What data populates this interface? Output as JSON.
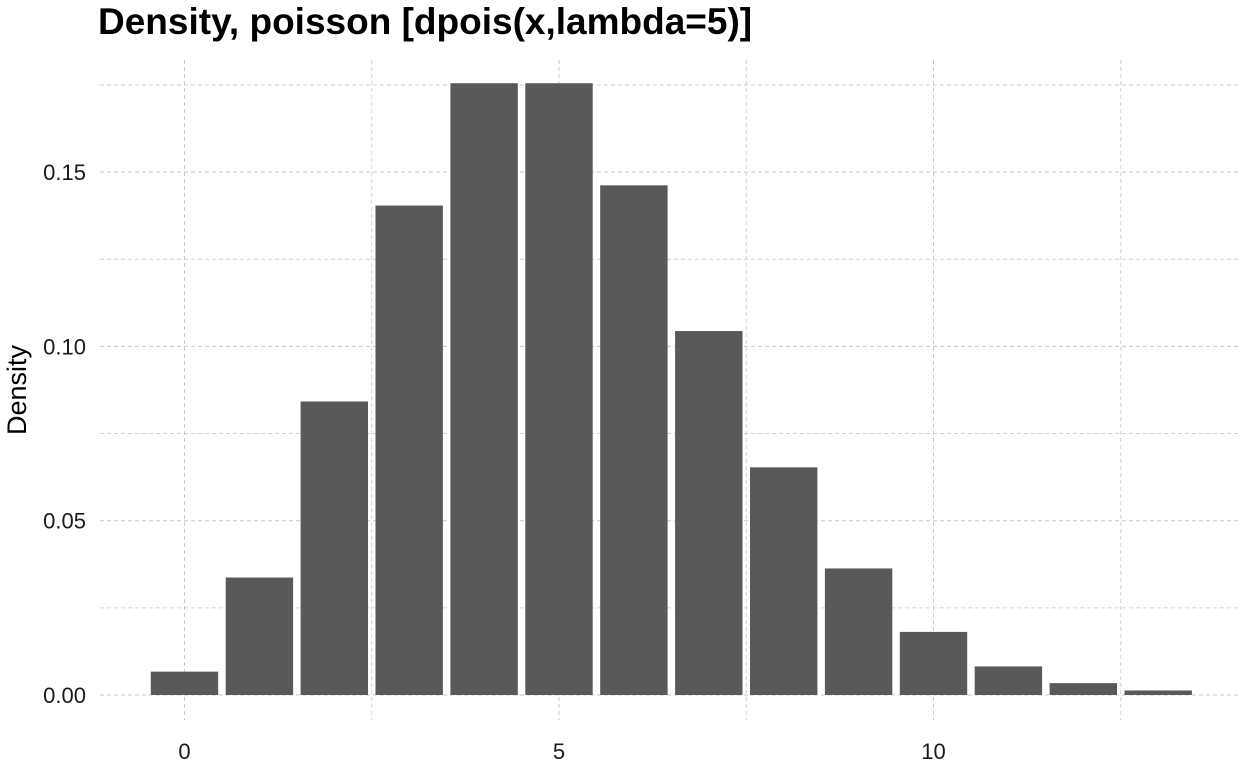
{
  "chart_data": {
    "type": "bar",
    "title": "Density, poisson [dpois(x,lambda=5)]",
    "xlabel": "",
    "ylabel": "Density",
    "x": [
      0,
      1,
      2,
      3,
      4,
      5,
      6,
      7,
      8,
      9,
      10,
      11,
      12,
      13
    ],
    "values": [
      0.0067,
      0.0337,
      0.0842,
      0.1404,
      0.1755,
      0.1755,
      0.1462,
      0.1044,
      0.0653,
      0.0363,
      0.0181,
      0.0082,
      0.0034,
      0.0013
    ],
    "xlim": [
      -0.5,
      13.5
    ],
    "ylim": [
      0,
      0.175
    ],
    "x_ticks": [
      0,
      5,
      10
    ],
    "x_tick_labels": [
      "0",
      "5",
      "10"
    ],
    "y_ticks": [
      0.0,
      0.05,
      0.1,
      0.15
    ],
    "y_tick_labels": [
      "0.00",
      "0.05",
      "0.10",
      "0.15"
    ],
    "grid": true,
    "bar_color": "#595959",
    "grid_color": "#c8c8c8"
  }
}
